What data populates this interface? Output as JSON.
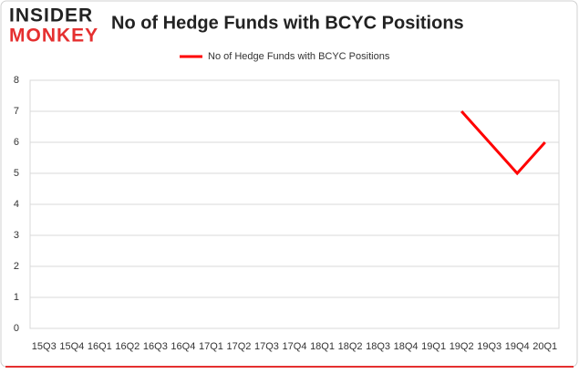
{
  "logo": {
    "line1": "INSIDER",
    "line2": "MONKEY"
  },
  "chart_data": {
    "type": "line",
    "title": "No of Hedge Funds with BCYC Positions",
    "categories": [
      "15Q3",
      "15Q4",
      "16Q1",
      "16Q2",
      "16Q3",
      "16Q4",
      "17Q1",
      "17Q2",
      "17Q3",
      "17Q4",
      "18Q1",
      "18Q2",
      "18Q3",
      "18Q4",
      "19Q1",
      "19Q2",
      "19Q3",
      "19Q4",
      "20Q1"
    ],
    "series": [
      {
        "name": "No of Hedge Funds with BCYC Positions",
        "color": "#ff0000",
        "values": [
          null,
          null,
          null,
          null,
          null,
          null,
          null,
          null,
          null,
          null,
          null,
          null,
          null,
          null,
          null,
          7,
          6,
          5,
          6
        ]
      }
    ],
    "ylim": [
      0,
      8
    ],
    "yticks": [
      0,
      1,
      2,
      3,
      4,
      5,
      6,
      7,
      8
    ],
    "grid": true,
    "legend": "top"
  }
}
